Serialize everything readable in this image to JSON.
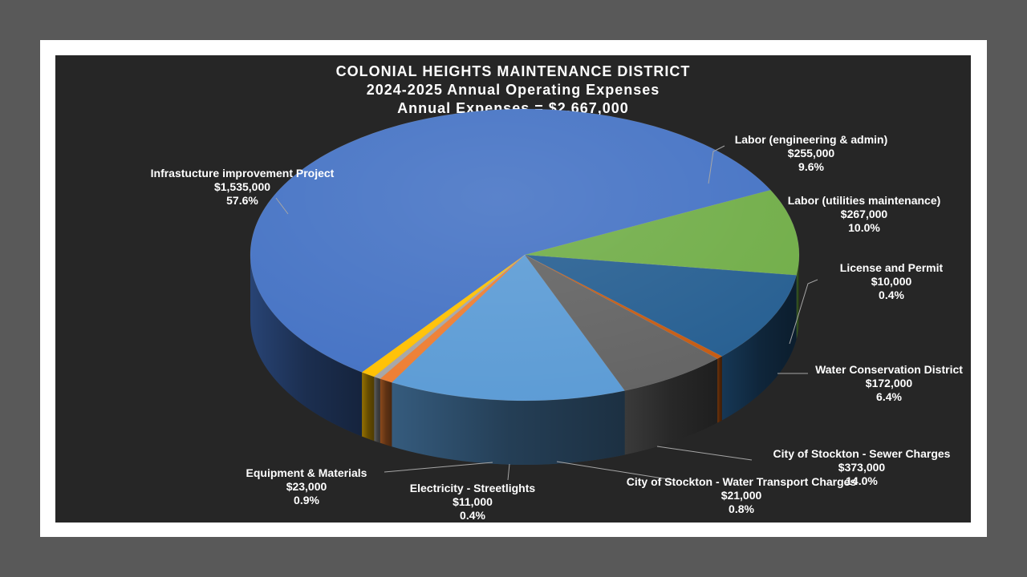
{
  "chart_data": {
    "type": "pie",
    "title": [
      "COLONIAL HEIGHTS MAINTENANCE DISTRICT",
      "2024-2025 Annual Operating Expenses",
      "Annual Expenses = $2,667,000"
    ],
    "slices": [
      {
        "label": "Labor (engineering & admin)",
        "value": 255000,
        "value_label": "$255,000",
        "percent": "9.6%",
        "color": "#70ad47"
      },
      {
        "label": "Labor (utilities maintenance)",
        "value": 267000,
        "value_label": "$267,000",
        "percent": "10.0%",
        "color": "#255e91"
      },
      {
        "label": "License and Permit",
        "value": 10000,
        "value_label": "$10,000",
        "percent": "0.4%",
        "color": "#c55a11"
      },
      {
        "label": "Water Conservation District",
        "value": 172000,
        "value_label": "$172,000",
        "percent": "6.4%",
        "color": "#636363"
      },
      {
        "label": "City of Stockton - Sewer Charges",
        "value": 373000,
        "value_label": "$373,000",
        "percent": "14.0%",
        "color": "#5b9bd5"
      },
      {
        "label": "City of Stockton - Water Transport Charges",
        "value": 21000,
        "value_label": "$21,000",
        "percent": "0.8%",
        "color": "#ed7d31"
      },
      {
        "label": "Electricity - Streetlights",
        "value": 11000,
        "value_label": "$11,000",
        "percent": "0.4%",
        "color": "#a5a5a5"
      },
      {
        "label": "Equipment & Materials",
        "value": 23000,
        "value_label": "$23,000",
        "percent": "0.9%",
        "color": "#ffc000"
      },
      {
        "label": "Infrastucture improvement Project",
        "value": 1535000,
        "value_label": "$1,535,000",
        "percent": "57.6%",
        "color": "#4472c4"
      }
    ],
    "style": "3d-pie"
  }
}
